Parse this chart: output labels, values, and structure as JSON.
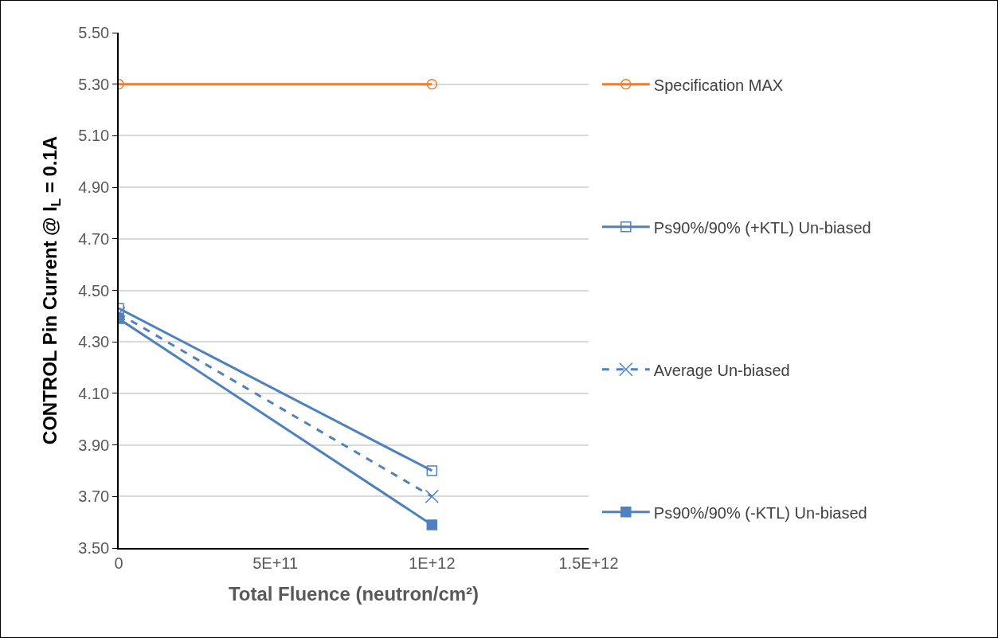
{
  "chart_data": {
    "type": "line",
    "xlabel": "Total Fluence (neutron/cm²)",
    "ylabel": "CONTROL Pin Current @ I$_{L}$ = 0.1A",
    "x": [
      0,
      1000000000000
    ],
    "series": [
      {
        "name": "Specification MAX",
        "color": "#ed7d31",
        "values": [
          5.3,
          5.3
        ],
        "marker": "circle",
        "line_style": "solid"
      },
      {
        "name": "Ps90%/90% (+KTL) Un-biased",
        "color": "#4f81bd",
        "values": [
          4.43,
          3.8
        ],
        "marker": "square",
        "line_style": "solid"
      },
      {
        "name": "Average Un-biased",
        "color": "#4f81bd",
        "values": [
          4.41,
          3.7
        ],
        "marker": "cross",
        "line_style": "dashed"
      },
      {
        "name": "Ps90%/90% (-KTL) Un-biased",
        "color": "#4f81bd",
        "values": [
          4.39,
          3.59
        ],
        "marker": "square",
        "line_style": "solid"
      }
    ],
    "xlim": [
      0,
      1500000000000
    ],
    "xticks": [
      0,
      {
        "value": 500000000000,
        "label": "5E+11"
      },
      {
        "value": 1000000000000,
        "label": "1E+12"
      },
      {
        "value": 1500000000000,
        "label": "1.5E+12"
      }
    ],
    "ylim": [
      3.5,
      5.5
    ],
    "yticks": [
      {
        "value": 3.5,
        "label": "3.50"
      },
      {
        "value": 3.7,
        "label": "3.70"
      },
      {
        "value": 3.9,
        "label": "3.90"
      },
      {
        "value": 4.1,
        "label": "4.10"
      },
      {
        "value": 4.3,
        "label": "4.30"
      },
      {
        "value": 4.5,
        "label": "4.50"
      },
      {
        "value": 4.7,
        "label": "4.70"
      },
      {
        "value": 4.9,
        "label": "4.90"
      },
      {
        "value": 5.1,
        "label": "5.10"
      },
      {
        "value": 5.3,
        "label": "5.30"
      },
      {
        "value": 5.5,
        "label": "5.50"
      }
    ],
    "grid": "y",
    "legend": "right"
  }
}
